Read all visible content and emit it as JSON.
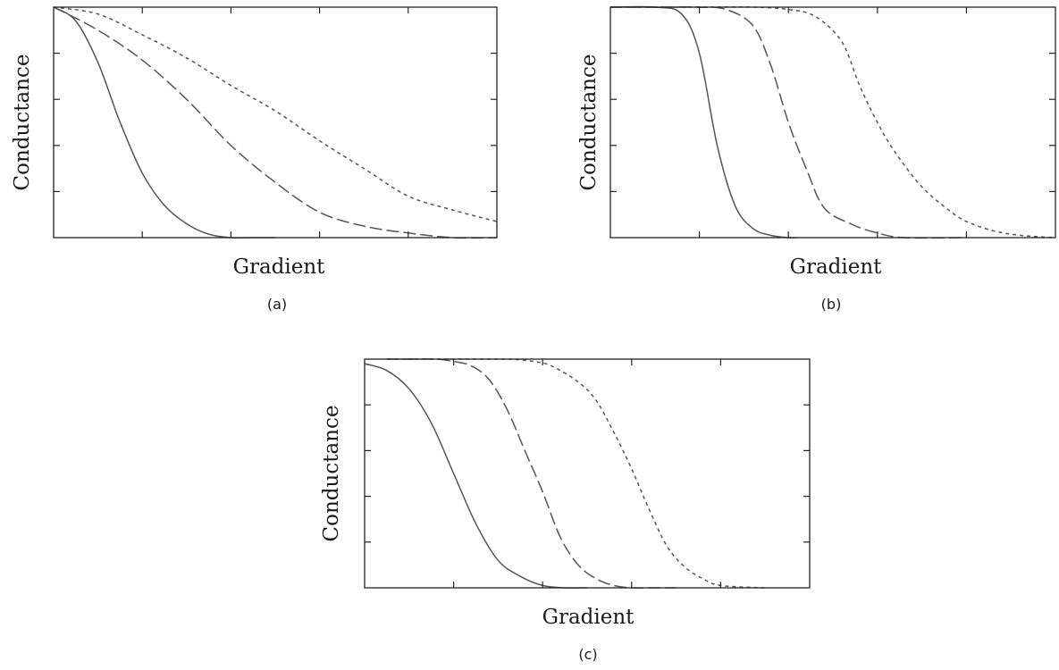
{
  "colors": {
    "curve": "#555555",
    "frame": "#222222",
    "text": "#1a1a1a"
  },
  "chart_data": [
    {
      "type": "line",
      "caption": "(a)",
      "xlabel": "Gradient",
      "ylabel": "Conductance",
      "xlim": [
        0,
        5
      ],
      "ylim": [
        0,
        1
      ],
      "grid": false,
      "series": [
        {
          "style": "solid",
          "x": [
            0,
            0.25,
            0.5,
            0.75,
            1,
            1.25,
            1.5,
            1.75,
            2,
            2.25,
            2.5
          ],
          "y": [
            1,
            0.94,
            0.76,
            0.5,
            0.28,
            0.14,
            0.06,
            0.015,
            0,
            0,
            0
          ]
        },
        {
          "style": "dashed",
          "x": [
            0,
            0.5,
            1,
            1.5,
            2,
            2.5,
            3,
            3.5,
            4,
            4.5,
            5
          ],
          "y": [
            1,
            0.9,
            0.77,
            0.6,
            0.4,
            0.24,
            0.11,
            0.05,
            0.02,
            0,
            0
          ]
        },
        {
          "style": "dotted",
          "x": [
            0,
            0.5,
            1,
            1.5,
            2,
            2.5,
            3,
            3.5,
            4,
            4.5,
            5
          ],
          "y": [
            1,
            0.97,
            0.88,
            0.78,
            0.66,
            0.55,
            0.42,
            0.3,
            0.18,
            0.12,
            0.07
          ]
        }
      ]
    },
    {
      "type": "line",
      "caption": "(b)",
      "xlabel": "Gradient",
      "ylabel": "Conductance",
      "xlim": [
        0,
        5
      ],
      "ylim": [
        0,
        1
      ],
      "grid": false,
      "series": [
        {
          "style": "solid",
          "x": [
            0,
            0.5,
            0.8,
            1,
            1.2,
            1.4,
            1.6,
            1.8,
            2,
            2.1
          ],
          "y": [
            1,
            1,
            0.97,
            0.8,
            0.4,
            0.14,
            0.04,
            0.01,
            0,
            0
          ]
        },
        {
          "style": "dashed",
          "x": [
            0,
            0.6,
            1,
            1.3,
            1.6,
            1.8,
            2,
            2.2,
            2.4,
            2.7,
            3,
            3.3,
            4
          ],
          "y": [
            1,
            1,
            1,
            0.99,
            0.92,
            0.75,
            0.5,
            0.3,
            0.13,
            0.06,
            0.02,
            0,
            0
          ]
        },
        {
          "style": "dotted",
          "x": [
            0,
            0.9,
            1.6,
            2,
            2.3,
            2.6,
            2.8,
            3,
            3.2,
            3.5,
            3.8,
            4,
            4.3,
            4.6,
            5
          ],
          "y": [
            1,
            1,
            1,
            0.99,
            0.96,
            0.85,
            0.66,
            0.5,
            0.37,
            0.22,
            0.12,
            0.07,
            0.03,
            0.01,
            0
          ]
        }
      ]
    },
    {
      "type": "line",
      "caption": "(c)",
      "xlabel": "Gradient",
      "ylabel": "Conductance",
      "xlim": [
        0,
        5
      ],
      "ylim": [
        0,
        1
      ],
      "grid": false,
      "series": [
        {
          "style": "solid",
          "x": [
            0,
            0.25,
            0.5,
            0.75,
            1,
            1.25,
            1.5,
            1.75,
            2,
            2.25,
            2.5
          ],
          "y": [
            0.98,
            0.95,
            0.87,
            0.72,
            0.5,
            0.28,
            0.12,
            0.05,
            0.01,
            0,
            0
          ]
        },
        {
          "style": "dashed",
          "x": [
            0.25,
            0.5,
            0.8,
            1,
            1.2,
            1.4,
            1.6,
            1.8,
            2,
            2.2,
            2.4,
            2.6,
            2.8,
            3,
            3.2,
            3.5
          ],
          "y": [
            1,
            1,
            1,
            0.99,
            0.97,
            0.91,
            0.78,
            0.6,
            0.42,
            0.22,
            0.1,
            0.04,
            0.01,
            0,
            0,
            0
          ]
        },
        {
          "style": "dotted",
          "x": [
            0.25,
            1,
            1.6,
            1.9,
            2.1,
            2.4,
            2.6,
            2.8,
            3,
            3.2,
            3.4,
            3.6,
            3.8,
            4,
            4.5
          ],
          "y": [
            1,
            1,
            1,
            0.99,
            0.97,
            0.9,
            0.82,
            0.68,
            0.52,
            0.34,
            0.18,
            0.09,
            0.04,
            0.01,
            0
          ]
        }
      ]
    }
  ]
}
